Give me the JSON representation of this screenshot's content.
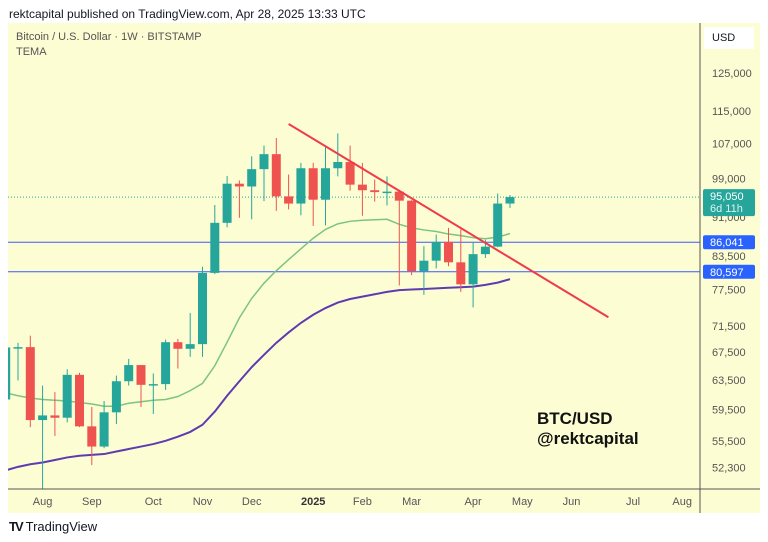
{
  "header": {
    "published": "rektcapital published on TradingView.com, Apr 28, 2025 13:33 UTC"
  },
  "legend": {
    "symbol": "Bitcoin / U.S. Dollar · 1W · BITSTAMP",
    "indicator": "TEMA"
  },
  "price_axis": {
    "currency": "USD"
  },
  "footer": {
    "brand": "TradingView"
  },
  "colors": {
    "up": "#26a69a",
    "down": "#ef5350",
    "background": "#fdfdd4",
    "ma_fast": "#7cc47f",
    "ma_slow": "#5e3bb0",
    "trendline": "#ef3b4a",
    "levels": "#3d5afe",
    "label_blue": "#2962ff",
    "label_last": "#26a69a"
  },
  "chart_data": {
    "type": "candlestick",
    "title": "",
    "scale": "log",
    "ylim": [
      48500,
      140000
    ],
    "yticks": [
      125000,
      115000,
      107000,
      99000,
      91000,
      83500,
      77500,
      71500,
      67500,
      63500,
      59500,
      55500,
      52300
    ],
    "xticks": [
      {
        "date": "2024-08-05",
        "label": "Aug"
      },
      {
        "date": "2024-09-02",
        "label": "Sep"
      },
      {
        "date": "2024-10-07",
        "label": "Oct"
      },
      {
        "date": "2024-11-04",
        "label": "Nov"
      },
      {
        "date": "2024-12-02",
        "label": "Dec"
      },
      {
        "date": "2025-01-06",
        "label": "2025",
        "bold": true
      },
      {
        "date": "2025-02-03",
        "label": "Feb"
      },
      {
        "date": "2025-03-03",
        "label": "Mar"
      },
      {
        "date": "2025-04-07",
        "label": "Apr"
      },
      {
        "date": "2025-05-05",
        "label": "May"
      },
      {
        "date": "2025-06-02",
        "label": "Jun"
      },
      {
        "date": "2025-07-07",
        "label": "Jul"
      },
      {
        "date": "2025-08-04",
        "label": "Aug"
      }
    ],
    "candles": [
      [
        "2024-07-15",
        60800,
        68400,
        60600,
        68200
      ],
      [
        "2024-07-22",
        68200,
        68900,
        63400,
        68250
      ],
      [
        "2024-07-29",
        68250,
        70000,
        57200,
        58100
      ],
      [
        "2024-08-05",
        58100,
        62700,
        49000,
        58700
      ],
      [
        "2024-08-12",
        58700,
        61800,
        56100,
        58400
      ],
      [
        "2024-08-19",
        58400,
        65000,
        57800,
        64200
      ],
      [
        "2024-08-26",
        64200,
        64500,
        57200,
        57300
      ],
      [
        "2024-09-02",
        57300,
        59800,
        52600,
        54800
      ],
      [
        "2024-09-09",
        54800,
        60600,
        54600,
        59100
      ],
      [
        "2024-09-16",
        59100,
        64100,
        57600,
        63300
      ],
      [
        "2024-09-23",
        63300,
        66500,
        62700,
        65600
      ],
      [
        "2024-09-30",
        65600,
        65600,
        59800,
        62800
      ],
      [
        "2024-10-07",
        62800,
        64400,
        58900,
        62900
      ],
      [
        "2024-10-14",
        62900,
        69400,
        62100,
        69000
      ],
      [
        "2024-10-21",
        69000,
        69500,
        65100,
        68000
      ],
      [
        "2024-10-28",
        68000,
        73600,
        66800,
        68700
      ],
      [
        "2024-11-04",
        68700,
        81500,
        66800,
        80400
      ],
      [
        "2024-11-11",
        80400,
        93400,
        80200,
        89800
      ],
      [
        "2024-11-18",
        89800,
        99600,
        88900,
        97900
      ],
      [
        "2024-11-25",
        97900,
        98600,
        90800,
        97300
      ],
      [
        "2024-12-02",
        97300,
        104000,
        90500,
        101100
      ],
      [
        "2024-12-09",
        101100,
        106500,
        94200,
        104500
      ],
      [
        "2024-12-16",
        104500,
        108300,
        92200,
        95200
      ],
      [
        "2024-12-23",
        95200,
        99900,
        92500,
        93700
      ],
      [
        "2024-12-30",
        93700,
        102500,
        91300,
        101300
      ],
      [
        "2025-01-06",
        101300,
        102500,
        89200,
        94500
      ],
      [
        "2025-01-13",
        94500,
        106400,
        89300,
        101300
      ],
      [
        "2025-01-20",
        101300,
        109400,
        99500,
        102700
      ],
      [
        "2025-01-27",
        102700,
        106500,
        96400,
        97700
      ],
      [
        "2025-02-03",
        97700,
        102500,
        91200,
        96500
      ],
      [
        "2025-02-10",
        96500,
        98800,
        94100,
        96100
      ],
      [
        "2025-02-17",
        96100,
        99500,
        93300,
        96200
      ],
      [
        "2025-02-24",
        96200,
        96500,
        78200,
        94300
      ],
      [
        "2025-03-03",
        94300,
        94400,
        80000,
        80700
      ],
      [
        "2025-03-10",
        80700,
        85300,
        76600,
        82600
      ],
      [
        "2025-03-17",
        82600,
        87500,
        81200,
        86100
      ],
      [
        "2025-03-24",
        86100,
        88800,
        81600,
        82300
      ],
      [
        "2025-03-31",
        82300,
        88500,
        77100,
        78400
      ],
      [
        "2025-04-07",
        78400,
        86100,
        74500,
        83800
      ],
      [
        "2025-04-14",
        83800,
        86500,
        83100,
        85200
      ],
      [
        "2025-04-21",
        85200,
        95800,
        85100,
        93700
      ],
      [
        "2025-04-28",
        93700,
        95500,
        92800,
        95050
      ]
    ],
    "ma_fast": [
      61700,
      61300,
      61000,
      60800,
      60700,
      60600,
      60400,
      60200,
      59900,
      59900,
      60300,
      60500,
      60700,
      60800,
      61200,
      62000,
      63000,
      65500,
      69000,
      72800,
      76000,
      78600,
      80800,
      82800,
      84800,
      86800,
      88500,
      89600,
      90100,
      90300,
      90400,
      90500,
      89500,
      88800,
      88400,
      88100,
      87600,
      87300,
      86900,
      86700,
      87000,
      87700
    ],
    "ma_slow": [
      52000,
      52400,
      52700,
      52900,
      53200,
      53500,
      53700,
      53800,
      53900,
      54200,
      54500,
      54800,
      55100,
      55500,
      56000,
      56600,
      57500,
      59200,
      61300,
      63300,
      65300,
      67100,
      68900,
      70500,
      72000,
      73300,
      74400,
      75300,
      75900,
      76300,
      76700,
      77100,
      77400,
      77500,
      77600,
      77700,
      77800,
      77900,
      78000,
      78300,
      78700,
      79300
    ],
    "trendline": {
      "from": [
        "2024-12-23",
        111700
      ],
      "to": [
        "2025-06-23",
        72900
      ]
    },
    "levels": [
      {
        "value": 86041,
        "label": "86,041"
      },
      {
        "value": 80597,
        "label": "80,597"
      }
    ],
    "last_price": {
      "value": 95050,
      "label": "95,050",
      "countdown": "6d 11h"
    },
    "annotations": [
      "BTC/USD",
      "@rektcapital"
    ]
  }
}
